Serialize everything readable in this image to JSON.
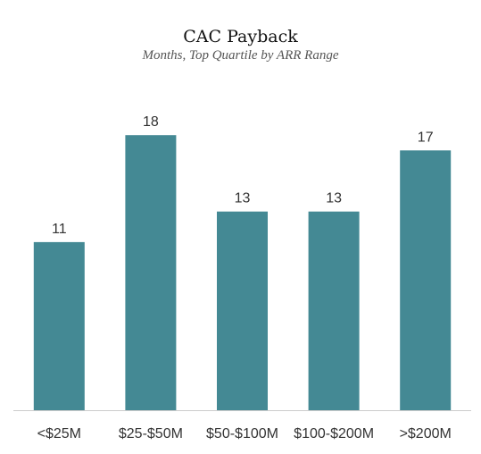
{
  "chart_data": {
    "type": "bar",
    "title": "CAC Payback",
    "subtitle": "Months, Top Quartile by ARR Range",
    "xlabel": "",
    "ylabel": "",
    "categories": [
      "<$25M",
      "$25-$50M",
      "$50-$100M",
      "$100-$200M",
      ">$200M"
    ],
    "values": [
      11,
      18,
      13,
      13,
      17
    ],
    "data_labels": [
      "11",
      "18",
      "13",
      "13",
      "17"
    ],
    "ylim": [
      0,
      20
    ],
    "grid": false,
    "legend": "none",
    "colors": {
      "bar": "#448994",
      "axis": "#cccccc"
    }
  }
}
